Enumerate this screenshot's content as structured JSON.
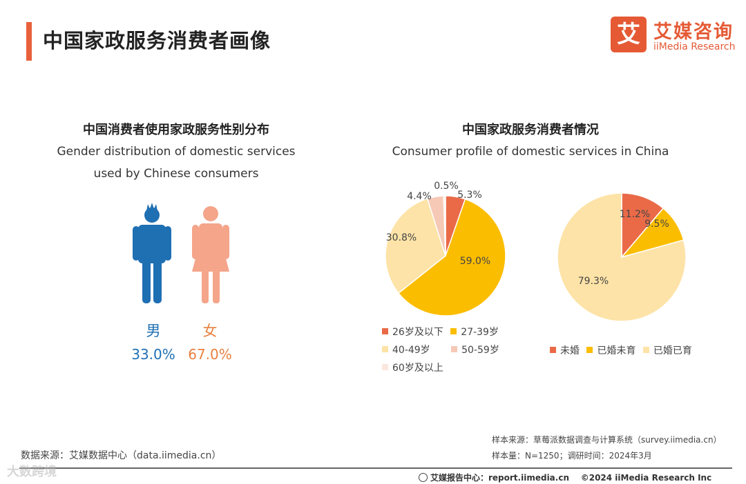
{
  "header": {
    "title": "中国家政服务消费者画像",
    "logo_glyph": "艾",
    "logo_cn": "艾媒咨询",
    "logo_en": "iiMedia Research"
  },
  "gender_section": {
    "title": "中国消费者使用家政服务性别分布",
    "subtitle_line1": "Gender distribution of domestic services",
    "subtitle_line2": "used by Chinese consumers"
  },
  "profile_section": {
    "title": "中国家政服务消费者情况",
    "subtitle": "Consumer profile of domestic services in China"
  },
  "chart_data": [
    {
      "type": "pictogram",
      "title": "中国消费者使用家政服务性别分布",
      "categories": [
        "男",
        "女"
      ],
      "values": [
        33.0,
        67.0
      ],
      "value_labels": [
        "33.0%",
        "67.0%"
      ],
      "colors": [
        "#1f6fb3",
        "#f4a58a"
      ],
      "label_colors": [
        "#1f6fb3",
        "#e8803f"
      ]
    },
    {
      "type": "pie",
      "title": "中国家政服务消费者情况 - 年龄",
      "categories": [
        "26岁及以下",
        "27-39岁",
        "40-49岁",
        "50-59岁",
        "60岁及以上"
      ],
      "values": [
        5.3,
        59.0,
        30.8,
        4.4,
        0.5
      ],
      "value_labels": [
        "5.3%",
        "59.0%",
        "30.8%",
        "4.4%",
        "0.5%"
      ],
      "colors": [
        "#ea6a47",
        "#fbbd00",
        "#fde3a7",
        "#f6c9b6",
        "#fbe7de"
      ],
      "legend": "bottom"
    },
    {
      "type": "pie",
      "title": "中国家政服务消费者情况 - 婚育",
      "categories": [
        "未婚",
        "已婚未育",
        "已婚已育"
      ],
      "values": [
        11.2,
        9.5,
        79.3
      ],
      "value_labels": [
        "11.2%",
        "9.5%",
        "79.3%"
      ],
      "colors": [
        "#ea6a47",
        "#fbbd00",
        "#fde3a7"
      ],
      "legend": "bottom"
    }
  ],
  "footer": {
    "source": "数据来源：艾媒数据中心（data.iimedia.cn）",
    "sample_source": "样本来源：草莓派数据调查与计算系统（survey.iimedia.cn）",
    "sample_size": "样本量：N=1250；调研时间：2024年3月",
    "report_center": "艾媒报告中心：report.iimedia.cn",
    "copyright": "©2024  iiMedia Research  Inc",
    "watermark": "大数跨境"
  }
}
